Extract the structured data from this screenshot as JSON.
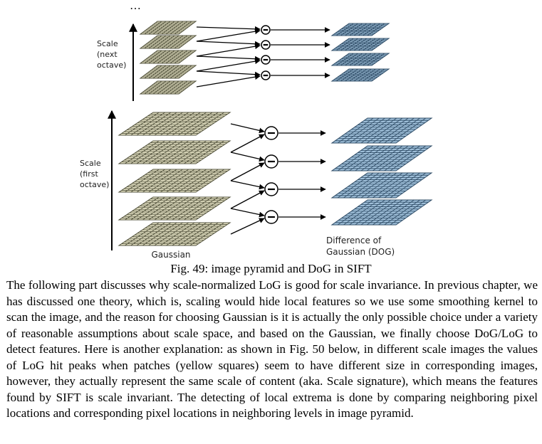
{
  "figure": {
    "ellipsis": "…",
    "labels": {
      "next_octave": [
        "Scale",
        "(next",
        "octave)"
      ],
      "first_octave": [
        "Scale",
        "(first",
        "octave)"
      ],
      "gaussian": "Gaussian",
      "dog": [
        "Difference of",
        "Gaussian (DOG)"
      ]
    },
    "colors": {
      "gaussian_fill": "#e9e6c8",
      "gaussian_grid": "#4f4f3a",
      "dog_fill": "#9fbfd9",
      "dog_grid": "#2f4c66",
      "arrow": "#000000"
    },
    "counts": {
      "next_octave_gaussians": 5,
      "first_octave_gaussians": 5,
      "next_octave_dogs": 4,
      "first_octave_dogs": 4
    }
  },
  "caption": "Fig. 49: image pyramid and DoG in SIFT",
  "paragraph": "The following part discusses why scale-normalized LoG is good for scale invariance. In previous chapter, we has discussed one theory, which is, scaling would hide local features so we use some smoothing kernel to scan the image, and the reason for choosing Gaussian is it is actually the only possible choice under a variety of reasonable assumptions about scale space, and based on the Gaussian, we finally choose DoG/LoG to detect features. Here is another explanation: as shown in Fig. 50 below, in different scale images the values of LoG hit peaks when patches (yellow squares) seem to have different size in corresponding images, however, they actually represent the same scale of content (aka. Scale signature), which means the features found by SIFT is scale invariant. The detecting of local extrema is done by comparing neighboring pixel locations and corresponding pixel locations in neighboring levels in image pyramid."
}
